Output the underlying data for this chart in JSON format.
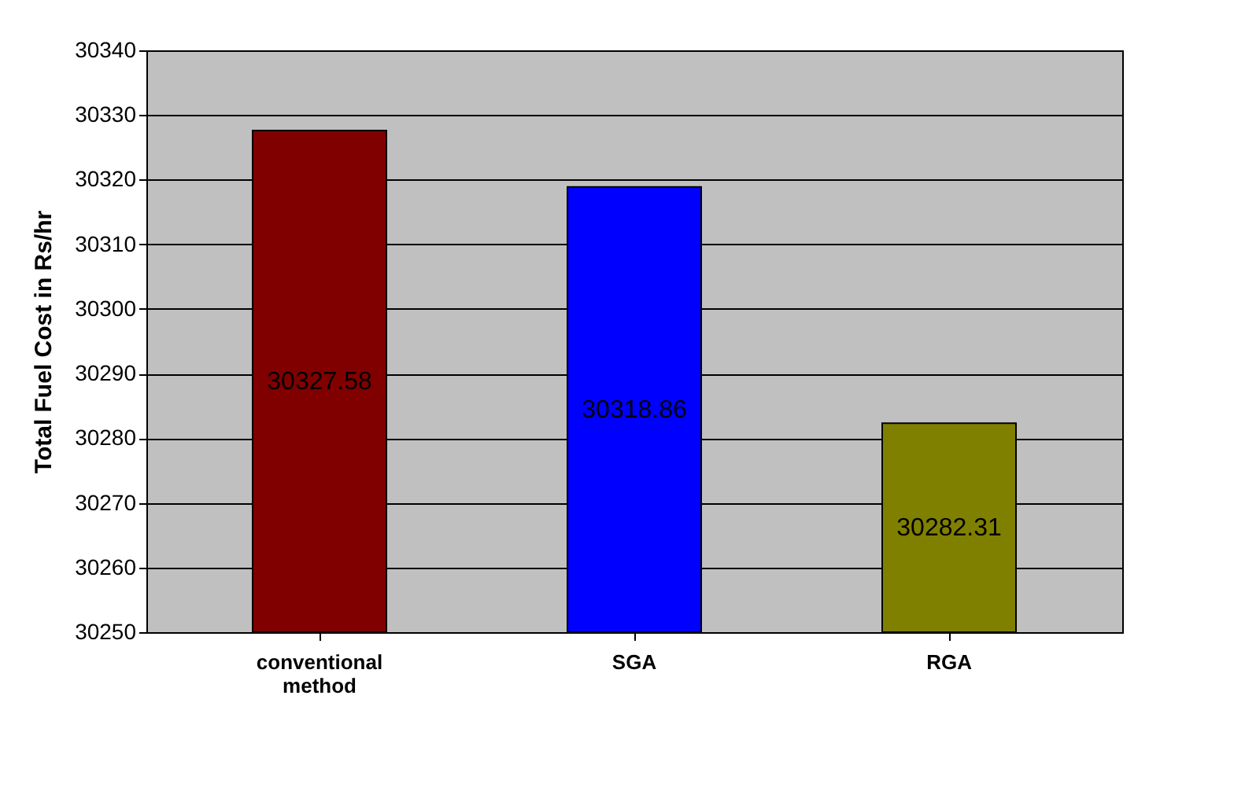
{
  "chart_data": {
    "type": "bar",
    "ylabel": "Total Fuel Cost in Rs/hr",
    "categories": [
      "conventional method",
      "SGA",
      "RGA"
    ],
    "values": [
      30327.58,
      30318.86,
      30282.31
    ],
    "colors": [
      "#800000",
      "#0000ff",
      "#808000"
    ],
    "ylim": [
      30250,
      30340
    ],
    "yticks": [
      30250,
      30260,
      30270,
      30280,
      30290,
      30300,
      30310,
      30320,
      30330,
      30340
    ],
    "grid": "y",
    "data_labels": true
  }
}
